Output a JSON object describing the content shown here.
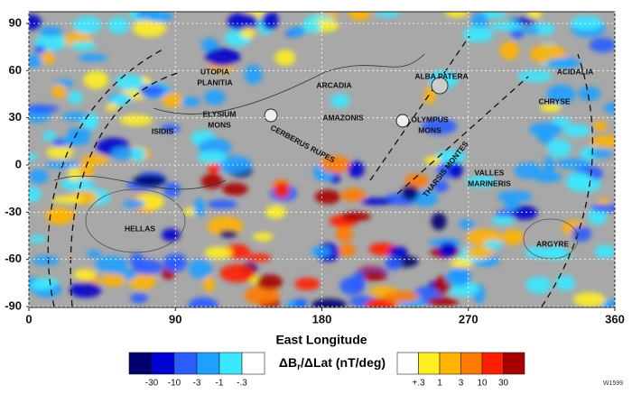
{
  "map": {
    "x_axis": {
      "label": "East Longitude",
      "lim": [
        0,
        360
      ],
      "ticks": [
        0,
        90,
        180,
        270,
        360
      ]
    },
    "y_axis": {
      "lim": [
        -90,
        90
      ],
      "ticks": [
        -90,
        -60,
        -30,
        0,
        30,
        60,
        90
      ]
    },
    "grid": true,
    "features": [
      {
        "lines": [
          "UTOPIA",
          "PLANITIA"
        ]
      },
      {
        "lines": [
          "ARCADIA"
        ]
      },
      {
        "lines": [
          "ALBA PATERA"
        ]
      },
      {
        "lines": [
          "ACIDALIA"
        ]
      },
      {
        "lines": [
          "ELYSIUM",
          "MONS"
        ]
      },
      {
        "lines": [
          "AMAZONIS"
        ]
      },
      {
        "lines": [
          "OLYMPUS",
          "MONS"
        ]
      },
      {
        "lines": [
          "CHRYSE"
        ]
      },
      {
        "lines": [
          "ISIDIS"
        ]
      },
      {
        "lines": [
          "CERBERUS RUPES"
        ]
      },
      {
        "lines": [
          "THARSIS MONTES"
        ]
      },
      {
        "lines": [
          "VALLES",
          "MARINERIS"
        ]
      },
      {
        "lines": [
          "HELLAS"
        ]
      },
      {
        "lines": [
          "ARGYRE"
        ]
      }
    ],
    "colorbar": {
      "title": {
        "main": "ΔB",
        "sub": "r",
        "rest": "/ΔLat (nT/deg)"
      },
      "negative": {
        "colors": [
          "#00006e",
          "#0000d2",
          "#2a5cff",
          "#1ea0ff",
          "#3ce8ff",
          "#ffffff"
        ],
        "labels": [
          "-30",
          "-10",
          "-3",
          "-1",
          "-.3"
        ]
      },
      "positive": {
        "colors": [
          "#ffffff",
          "#ffee22",
          "#ffb400",
          "#ff7a00",
          "#ff1e00",
          "#a80000"
        ],
        "labels": [
          "+.3",
          "1",
          "3",
          "10",
          "30"
        ]
      }
    },
    "figure_id": "W1599"
  }
}
